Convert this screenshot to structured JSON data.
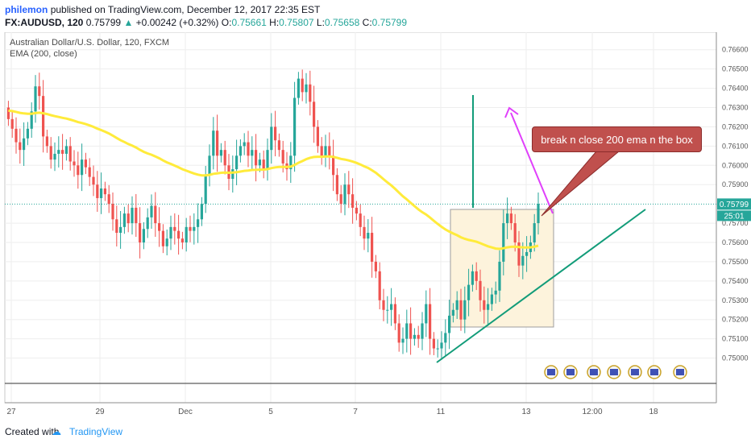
{
  "header": {
    "user": "philemon",
    "published_text": "published on TradingView.com, December 12, 2017 22:35 EST",
    "symbol": "FX:AUDUSD, 120",
    "last": "0.75799",
    "change_arrow": "▲",
    "change": "+0.00242 (+0.32%)",
    "o_label": "O:",
    "o": "0.75661",
    "h_label": "H:",
    "h": "0.75807",
    "l_label": "L:",
    "l": "0.75658",
    "c_label": "C:",
    "c": "0.75799"
  },
  "legend": {
    "title": "Australian Dollar/U.S. Dollar, 120, FXCM",
    "indicator": "EMA (200, close)"
  },
  "annotation": {
    "text": "break n close 200 ema n the box"
  },
  "footer": {
    "created": "Created with",
    "brand": "TradingView"
  },
  "colors": {
    "up": "#26a69a",
    "down": "#ef5350",
    "ema": "#ffeb3b",
    "arrow": "#e040fb",
    "trend": "#129c79"
  },
  "chart_data": {
    "type": "candlestick",
    "ylim": [
      0.7495,
      0.7667
    ],
    "y_ticks": [
      "0.76600",
      "0.76500",
      "0.76400",
      "0.76300",
      "0.76200",
      "0.76100",
      "0.76000",
      "0.75900",
      "0.75700",
      "0.75600",
      "0.75500",
      "0.75400",
      "0.75300",
      "0.75200",
      "0.75100",
      "0.75000"
    ],
    "x_ticks": [
      "27",
      "29",
      "Dec",
      "5",
      "7",
      "11",
      "13",
      "12:00",
      "18"
    ],
    "price_label": "0.75799",
    "countdown_label": "25:01",
    "close": [
      0.7624,
      0.7619,
      0.7612,
      0.7608,
      0.7614,
      0.7619,
      0.7628,
      0.7641,
      0.7636,
      0.7615,
      0.761,
      0.7603,
      0.7606,
      0.7608,
      0.7606,
      0.761,
      0.7602,
      0.76,
      0.7595,
      0.7603,
      0.7599,
      0.7594,
      0.759,
      0.7583,
      0.7588,
      0.7585,
      0.758,
      0.7572,
      0.7565,
      0.7568,
      0.7575,
      0.757,
      0.7578,
      0.757,
      0.756,
      0.7567,
      0.7573,
      0.7579,
      0.757,
      0.7566,
      0.7558,
      0.7562,
      0.7568,
      0.7566,
      0.7562,
      0.756,
      0.7568,
      0.7566,
      0.7568,
      0.7572,
      0.758,
      0.7595,
      0.7605,
      0.7618,
      0.7605,
      0.7608,
      0.76,
      0.7593,
      0.7598,
      0.7605,
      0.761,
      0.7612,
      0.7605,
      0.7608,
      0.76,
      0.7603,
      0.7598,
      0.7608,
      0.762,
      0.7613,
      0.7608,
      0.7601,
      0.7598,
      0.7605,
      0.7635,
      0.7645,
      0.7638,
      0.7642,
      0.7633,
      0.762,
      0.761,
      0.7605,
      0.761,
      0.7605,
      0.7595,
      0.7585,
      0.758,
      0.759,
      0.7585,
      0.7578,
      0.7575,
      0.7568,
      0.7562,
      0.7565,
      0.755,
      0.7545,
      0.753,
      0.7525,
      0.7525,
      0.7528,
      0.7518,
      0.7508,
      0.751,
      0.7518,
      0.751,
      0.7512,
      0.751,
      0.7518,
      0.7528,
      0.751,
      0.7505,
      0.7505,
      0.7508,
      0.7513,
      0.7522,
      0.7525,
      0.753,
      0.752,
      0.753,
      0.7538,
      0.7545,
      0.754,
      0.753,
      0.7525,
      0.7528,
      0.7533,
      0.7535,
      0.755,
      0.757,
      0.7575,
      0.757,
      0.756,
      0.7548,
      0.7553,
      0.7555,
      0.756,
      0.757,
      0.758
    ]
  }
}
